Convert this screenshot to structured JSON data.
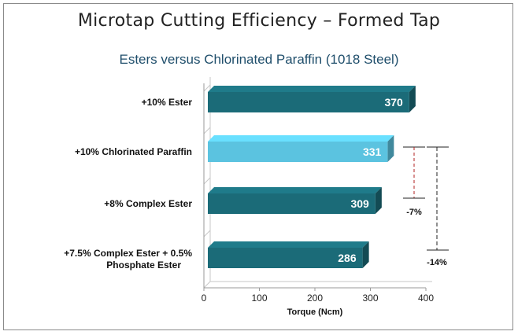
{
  "title": "Microtap Cutting Efficiency – Formed Tap",
  "chart_data": {
    "type": "bar",
    "orientation": "horizontal",
    "title": "Esters versus Chlorinated Paraffin (1018 Steel)",
    "xlabel": "Torque (Ncm)",
    "ylabel": "",
    "xlim": [
      0,
      400
    ],
    "x_ticks": [
      0,
      100,
      200,
      300,
      400
    ],
    "categories": [
      "+10% Ester",
      "+10% Chlorinated Paraffin",
      "+8% Complex Ester",
      "+7.5% Complex Ester + 0.5% Phosphate Ester"
    ],
    "values": [
      370,
      331,
      309,
      286
    ],
    "bar_colors": [
      "#1b6b78",
      "#5bc3e0",
      "#1b6b78",
      "#1b6b78"
    ],
    "grid": false,
    "annotations": [
      {
        "from": "+10% Chlorinated Paraffin",
        "to": "+8% Complex Ester",
        "label": "-7%"
      },
      {
        "from": "+10% Chlorinated Paraffin",
        "to": "+7.5% Complex Ester + 0.5% Phosphate Ester",
        "label": "-14%"
      }
    ]
  }
}
